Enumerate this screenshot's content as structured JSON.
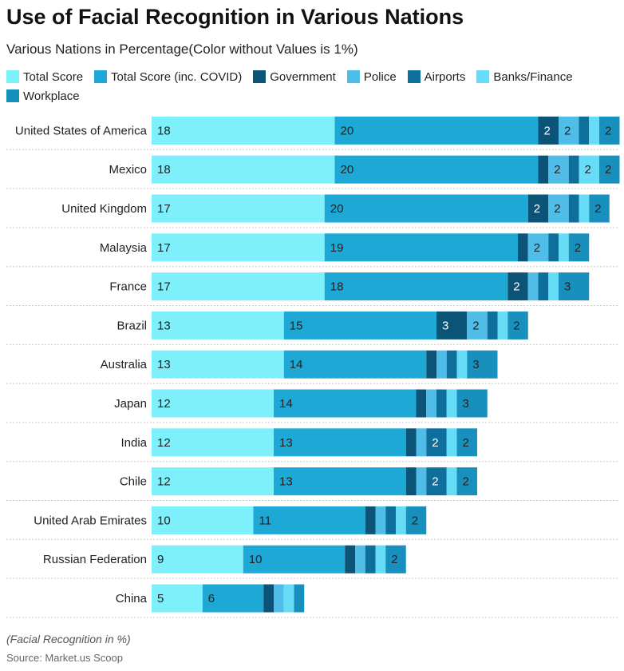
{
  "title": "Use of Facial Recognition in Various Nations",
  "subtitle": "Various Nations in Percentage(Color without Values is 1%)",
  "footnote": "(Facial Recognition in %)",
  "source": "Source: Market.us Scoop",
  "chart_data": {
    "type": "bar",
    "orientation": "horizontal",
    "stacked": true,
    "legend_position": "top",
    "grid": false,
    "categories": [
      "United States of America",
      "Mexico",
      "United Kingdom",
      "Malaysia",
      "France",
      "Brazil",
      "Australia",
      "Japan",
      "India",
      "Chile",
      "United Arab Emirates",
      "Russian Federation",
      "China"
    ],
    "series": [
      {
        "name": "Total Score",
        "color": "#7ef0fb",
        "values": [
          18,
          18,
          17,
          17,
          17,
          13,
          13,
          12,
          12,
          12,
          10,
          9,
          5
        ]
      },
      {
        "name": "Total Score (inc. COVID)",
        "color": "#1ea8d6",
        "values": [
          20,
          20,
          20,
          19,
          18,
          15,
          14,
          14,
          13,
          13,
          11,
          10,
          6
        ]
      },
      {
        "name": "Government",
        "color": "#0b5478",
        "values": [
          2,
          1,
          2,
          1,
          2,
          3,
          1,
          1,
          1,
          1,
          1,
          1,
          1
        ]
      },
      {
        "name": "Police",
        "color": "#4fbde8",
        "values": [
          2,
          2,
          2,
          2,
          1,
          2,
          1,
          1,
          1,
          1,
          1,
          1,
          1
        ]
      },
      {
        "name": "Airports",
        "color": "#0e6f9c",
        "values": [
          1,
          1,
          1,
          1,
          1,
          1,
          1,
          1,
          2,
          2,
          1,
          1,
          0
        ]
      },
      {
        "name": "Banks/Finance",
        "color": "#66dcf6",
        "values": [
          1,
          2,
          1,
          1,
          1,
          1,
          1,
          1,
          1,
          1,
          1,
          1,
          1
        ]
      },
      {
        "name": "Workplace",
        "color": "#1890bd",
        "values": [
          2,
          2,
          2,
          2,
          3,
          2,
          3,
          3,
          2,
          2,
          2,
          2,
          1
        ]
      }
    ],
    "show_value_threshold": 2
  }
}
